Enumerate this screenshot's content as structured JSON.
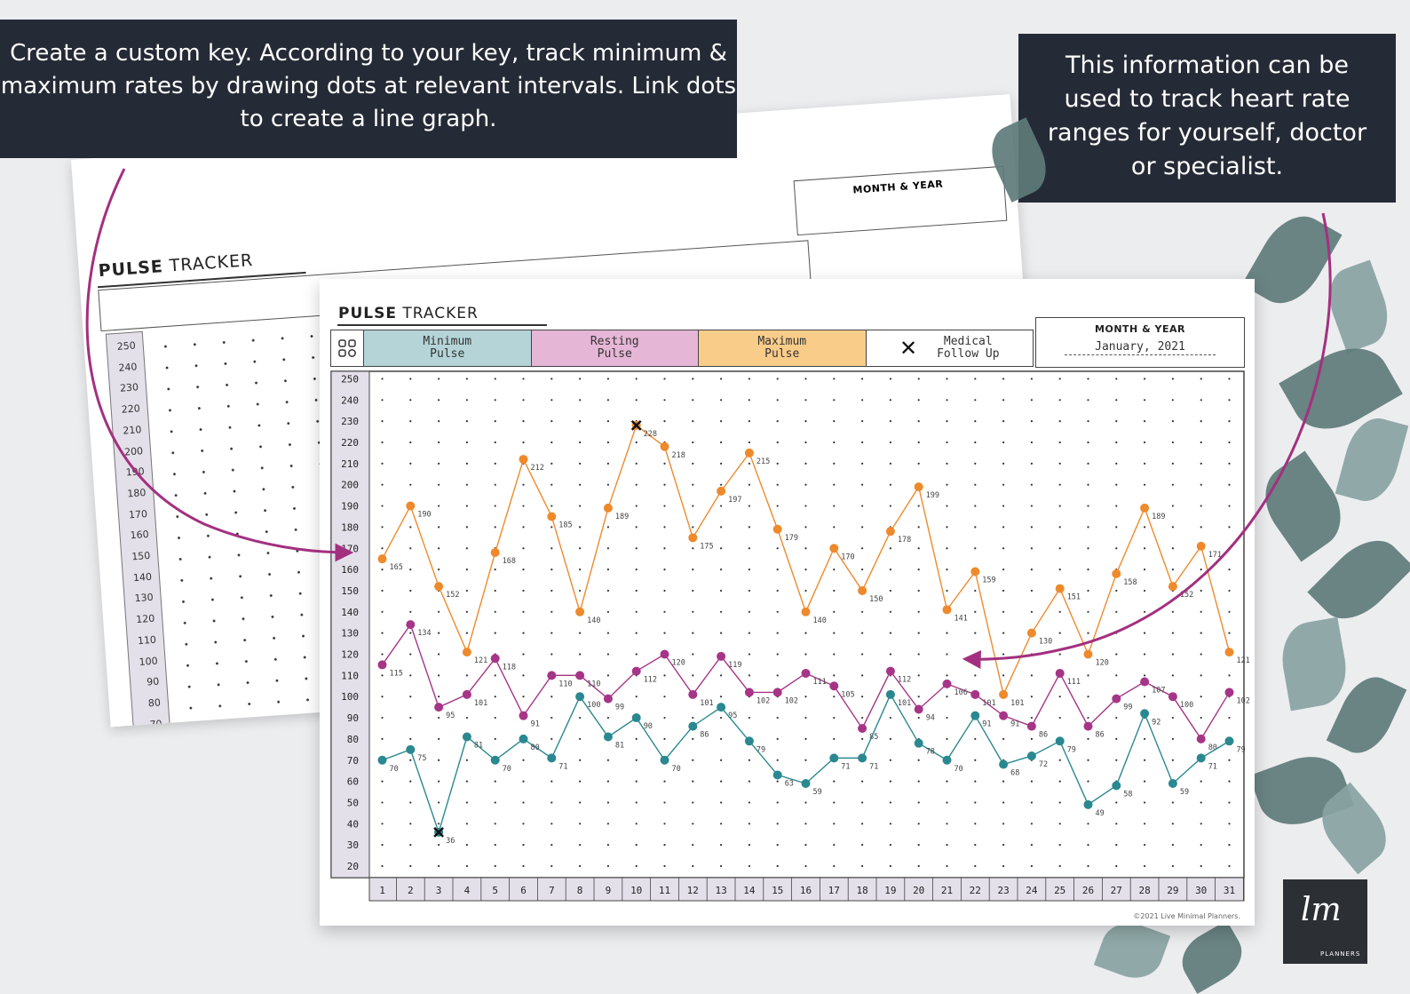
{
  "captions": {
    "left": "Create a custom key. According to your key, track minimum & maximum rates by drawing dots at relevant intervals. Link dots to create a line graph.",
    "right": "This information can be used to track heart rate ranges for yourself, doctor or specialist."
  },
  "tracker": {
    "title_bold": "PULSE",
    "title_rest": " TRACKER",
    "key": [
      {
        "label": "Minimum\nPulse",
        "color": "#b5d4d7"
      },
      {
        "label": "Resting\nPulse",
        "color": "#e5b6d6"
      },
      {
        "label": "Maximum\nPulse",
        "color": "#f9cc8a"
      },
      {
        "label": "Medical\nFollow Up",
        "color": "#ffffff",
        "marker": "✕"
      }
    ],
    "month_label": "MONTH & YEAR",
    "month_value": "January, 2021",
    "credit": "©2021 Live Minimal Planners."
  },
  "background_sheet": {
    "title_bold": "PULSE",
    "title_rest": " TRACKER",
    "month_label": "MONTH & YEAR"
  },
  "logo": {
    "mark": "lm",
    "text": "PLANNERS"
  },
  "chart_data": {
    "type": "line",
    "title": "PULSE TRACKER",
    "x": [
      1,
      2,
      3,
      4,
      5,
      6,
      7,
      8,
      9,
      10,
      11,
      12,
      13,
      14,
      15,
      16,
      17,
      18,
      19,
      20,
      21,
      22,
      23,
      24,
      25,
      26,
      27,
      28,
      29,
      30,
      31
    ],
    "ylim": [
      20,
      250
    ],
    "yticks": [
      20,
      30,
      40,
      50,
      60,
      70,
      80,
      90,
      100,
      110,
      120,
      130,
      140,
      150,
      160,
      170,
      180,
      190,
      200,
      210,
      220,
      230,
      240,
      250
    ],
    "series": [
      {
        "name": "Maximum Pulse",
        "color": "#ee8a2c",
        "values": [
          165,
          190,
          152,
          121,
          168,
          212,
          185,
          140,
          189,
          228,
          218,
          175,
          197,
          215,
          179,
          140,
          170,
          150,
          178,
          199,
          141,
          159,
          101,
          130,
          151,
          120,
          158,
          189,
          152,
          171,
          121
        ]
      },
      {
        "name": "Resting Pulse",
        "color": "#a63587",
        "values": [
          115,
          134,
          95,
          101,
          118,
          91,
          110,
          110,
          99,
          112,
          120,
          101,
          119,
          102,
          102,
          111,
          105,
          85,
          112,
          94,
          106,
          101,
          91,
          86,
          111,
          86,
          99,
          107,
          100,
          80,
          102
        ]
      },
      {
        "name": "Minimum Pulse",
        "color": "#2a8890",
        "values": [
          70,
          75,
          36,
          81,
          70,
          80,
          71,
          100,
          81,
          90,
          70,
          86,
          95,
          79,
          63,
          59,
          71,
          71,
          101,
          78,
          70,
          91,
          68,
          72,
          79,
          49,
          58,
          92,
          59,
          71,
          79
        ]
      }
    ],
    "medical_follow_up": [
      {
        "x": 3,
        "y": 36
      },
      {
        "x": 10,
        "y": 228
      }
    ]
  }
}
